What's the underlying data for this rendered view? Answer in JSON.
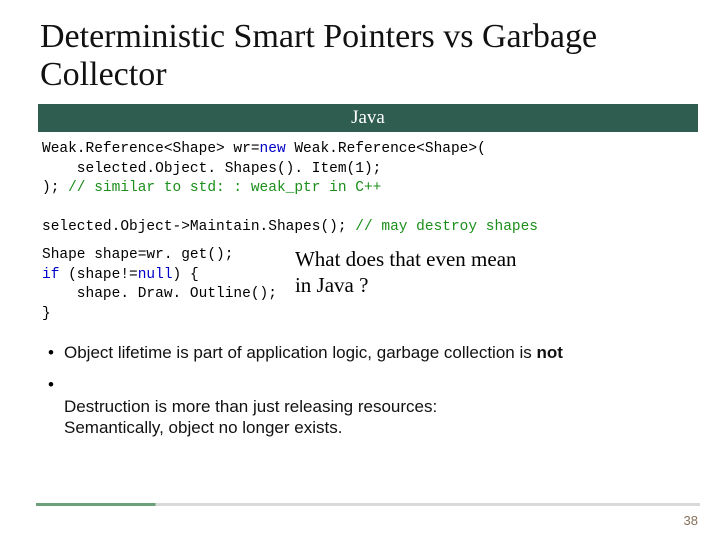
{
  "title": "Deterministic Smart Pointers vs Garbage Collector",
  "header_label": "Java",
  "colors": {
    "header_bg": "#2f5d50",
    "header_fg": "#ffffff",
    "keyword": "#0000c8",
    "comment": "#1a8f1a",
    "accent_bar": "#6aa07a",
    "page_num": "#85705a"
  },
  "code": {
    "l1a": "Weak.Reference<Shape> wr=",
    "l1_kw": "new",
    "l1b": " Weak.Reference<Shape>(",
    "l2": "    selected.Object. Shapes(). Item(1);",
    "l3a": "); ",
    "l3_cm": "// similar to std: : weak_ptr in C++",
    "l5a": "selected.Object->Maintain.Shapes(); ",
    "l5_cm": "// may destroy shapes",
    "l7": "Shape shape=wr. get();",
    "l8a": "if",
    "l8b": " (shape!=",
    "l8c": "null",
    "l8d": ") {",
    "l9": "    shape. Draw. Outline();",
    "l10": "}"
  },
  "callout": {
    "line1": "What does that even mean",
    "line2": "in Java ?"
  },
  "bullets": [
    {
      "pre": "Object lifetime is part of application logic, garbage collection is ",
      "bold": "not",
      "post": ""
    },
    {
      "pre": "Destruction is more than just releasing resources:\nSemantically, object no longer exists.",
      "bold": "",
      "post": ""
    }
  ],
  "page_number": "38"
}
